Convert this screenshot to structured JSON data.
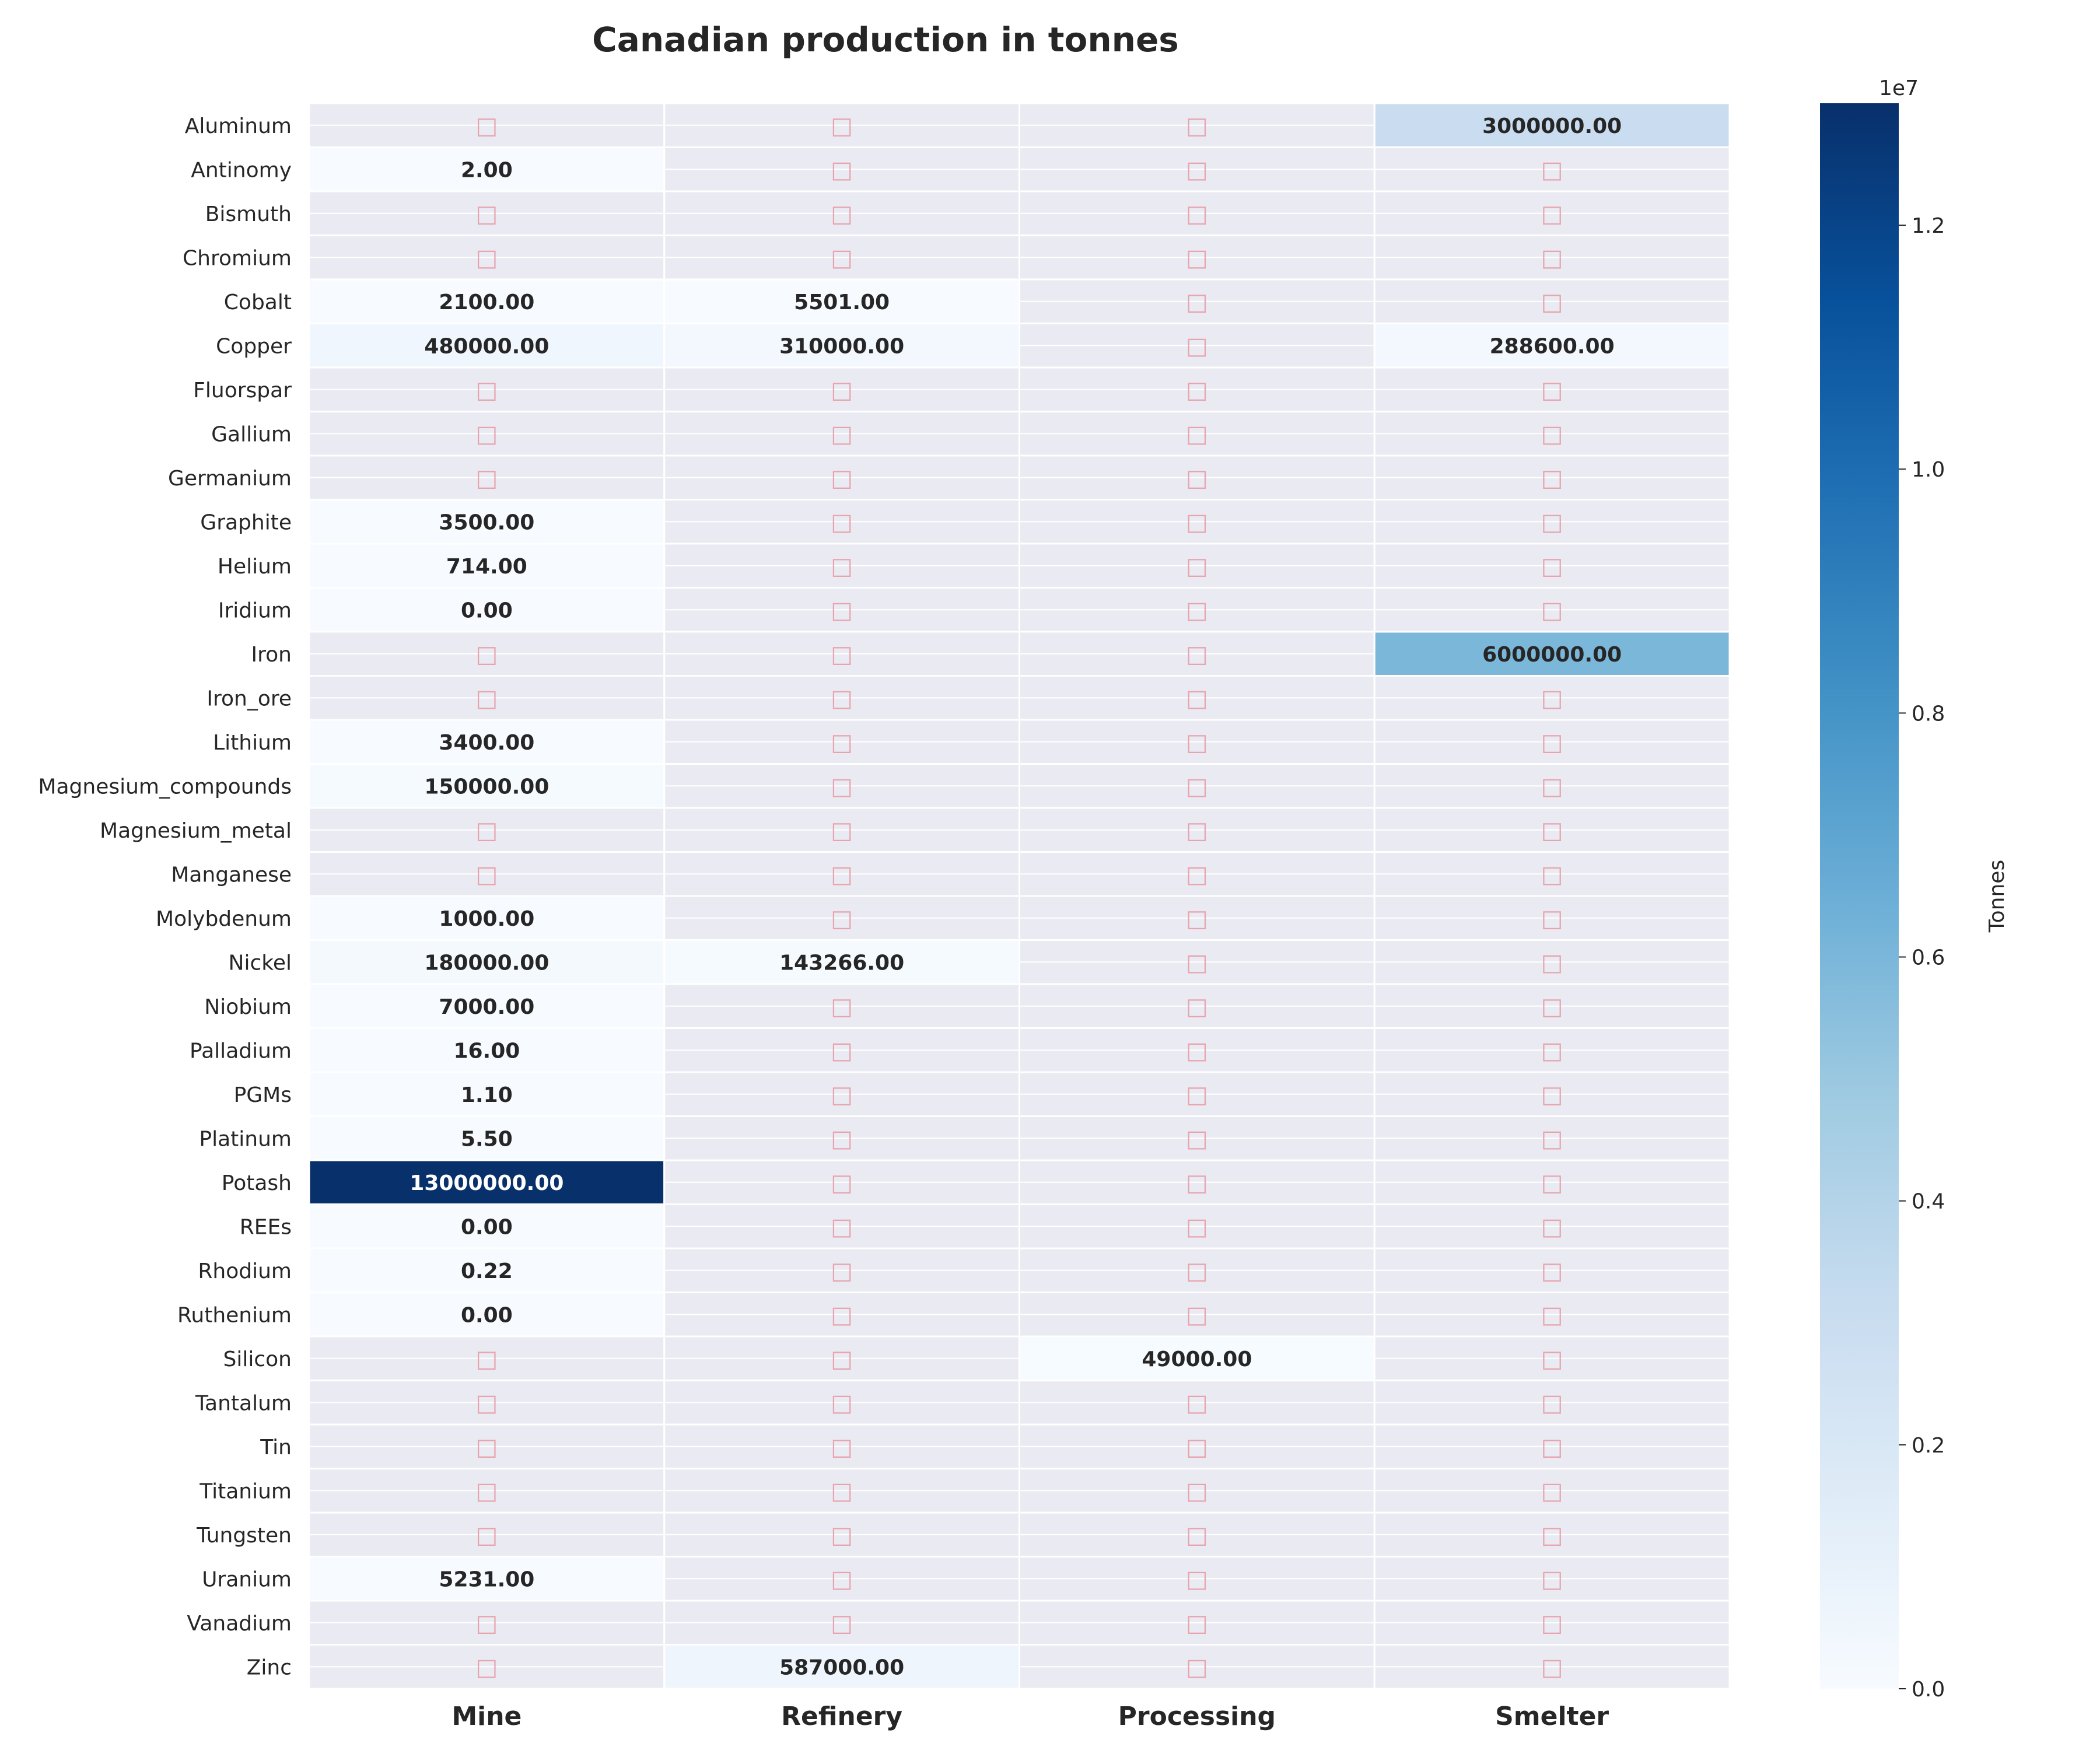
{
  "chart_data": {
    "type": "heatmap",
    "title": "Canadian production in tonnes",
    "xlabel": "",
    "ylabel": "",
    "columns": [
      "Mine",
      "Refinery",
      "Processing",
      "Smelter"
    ],
    "rows": [
      "Aluminum",
      "Antinomy",
      "Bismuth",
      "Chromium",
      "Cobalt",
      "Copper",
      "Fluorspar",
      "Gallium",
      "Germanium",
      "Graphite",
      "Helium",
      "Iridium",
      "Iron",
      "Iron_ore",
      "Lithium",
      "Magnesium_compounds",
      "Magnesium_metal",
      "Manganese",
      "Molybdenum",
      "Nickel",
      "Niobium",
      "Palladium",
      "PGMs",
      "Platinum",
      "Potash",
      "REEs",
      "Rhodium",
      "Ruthenium",
      "Silicon",
      "Tantalum",
      "Tin",
      "Titanium",
      "Tungsten",
      "Uranium",
      "Vanadium",
      "Zinc"
    ],
    "values": [
      [
        null,
        null,
        null,
        3000000
      ],
      [
        2,
        null,
        null,
        null
      ],
      [
        null,
        null,
        null,
        null
      ],
      [
        null,
        null,
        null,
        null
      ],
      [
        2100,
        5501,
        null,
        null
      ],
      [
        480000,
        310000,
        null,
        288600
      ],
      [
        null,
        null,
        null,
        null
      ],
      [
        null,
        null,
        null,
        null
      ],
      [
        null,
        null,
        null,
        null
      ],
      [
        3500,
        null,
        null,
        null
      ],
      [
        714,
        null,
        null,
        null
      ],
      [
        0,
        null,
        null,
        null
      ],
      [
        null,
        null,
        null,
        6000000
      ],
      [
        null,
        null,
        null,
        null
      ],
      [
        3400,
        null,
        null,
        null
      ],
      [
        150000,
        null,
        null,
        null
      ],
      [
        null,
        null,
        null,
        null
      ],
      [
        null,
        null,
        null,
        null
      ],
      [
        1000,
        null,
        null,
        null
      ],
      [
        180000,
        143266,
        null,
        null
      ],
      [
        7000,
        null,
        null,
        null
      ],
      [
        16,
        null,
        null,
        null
      ],
      [
        1.1,
        null,
        null,
        null
      ],
      [
        5.5,
        null,
        null,
        null
      ],
      [
        13000000,
        null,
        null,
        null
      ],
      [
        0,
        null,
        null,
        null
      ],
      [
        0.22,
        null,
        null,
        null
      ],
      [
        0,
        null,
        null,
        null
      ],
      [
        null,
        null,
        49000,
        null
      ],
      [
        null,
        null,
        null,
        null
      ],
      [
        null,
        null,
        null,
        null
      ],
      [
        null,
        null,
        null,
        null
      ],
      [
        null,
        null,
        null,
        null
      ],
      [
        5231,
        null,
        null,
        null
      ],
      [
        null,
        null,
        null,
        null
      ],
      [
        null,
        587000,
        null,
        null
      ]
    ],
    "value_labels": [
      [
        "",
        "",
        "",
        "3000000.00"
      ],
      [
        "2.00",
        "",
        "",
        ""
      ],
      [
        "",
        "",
        "",
        ""
      ],
      [
        "",
        "",
        "",
        ""
      ],
      [
        "2100.00",
        "5501.00",
        "",
        ""
      ],
      [
        "480000.00",
        "310000.00",
        "",
        "288600.00"
      ],
      [
        "",
        "",
        "",
        ""
      ],
      [
        "",
        "",
        "",
        ""
      ],
      [
        "",
        "",
        "",
        ""
      ],
      [
        "3500.00",
        "",
        "",
        ""
      ],
      [
        "714.00",
        "",
        "",
        ""
      ],
      [
        "0.00",
        "",
        "",
        ""
      ],
      [
        "",
        "",
        "",
        "6000000.00"
      ],
      [
        "",
        "",
        "",
        ""
      ],
      [
        "3400.00",
        "",
        "",
        ""
      ],
      [
        "150000.00",
        "",
        "",
        ""
      ],
      [
        "",
        "",
        "",
        ""
      ],
      [
        "",
        "",
        "",
        ""
      ],
      [
        "1000.00",
        "",
        "",
        ""
      ],
      [
        "180000.00",
        "143266.00",
        "",
        ""
      ],
      [
        "7000.00",
        "",
        "",
        ""
      ],
      [
        "16.00",
        "",
        "",
        ""
      ],
      [
        "1.10",
        "",
        "",
        ""
      ],
      [
        "5.50",
        "",
        "",
        ""
      ],
      [
        "13000000.00",
        "",
        "",
        ""
      ],
      [
        "0.00",
        "",
        "",
        ""
      ],
      [
        "0.22",
        "",
        "",
        ""
      ],
      [
        "0.00",
        "",
        "",
        ""
      ],
      [
        "",
        "",
        "49000.00",
        ""
      ],
      [
        "",
        "",
        "",
        ""
      ],
      [
        "",
        "",
        "",
        ""
      ],
      [
        "",
        "",
        "",
        ""
      ],
      [
        "",
        "",
        "",
        ""
      ],
      [
        "5231.00",
        "",
        "",
        ""
      ],
      [
        "",
        "",
        "",
        ""
      ],
      [
        "",
        "587000.00",
        "",
        ""
      ]
    ],
    "missing_glyph": "□",
    "colorbar": {
      "label": "Tonnes",
      "exponent_label": "1e7",
      "range": [
        0,
        13000000
      ],
      "ticks": [
        0,
        2000000,
        4000000,
        6000000,
        8000000,
        10000000,
        12000000
      ],
      "tick_labels": [
        "0.0",
        "0.2",
        "0.4",
        "0.6",
        "0.8",
        "1.0",
        "1.2"
      ],
      "colormap": "Blues",
      "stops": [
        "#f7fbff",
        "#deebf7",
        "#c6dbef",
        "#9ecae1",
        "#6baed6",
        "#4292c6",
        "#2171b5",
        "#08519c",
        "#08306b"
      ]
    },
    "colors": {
      "missing_cell": "#eaeaf2",
      "grid_line": "#ffffff",
      "missing_glyph": "#e8a3ae",
      "text_dark": "#262626",
      "text_light": "#ffffff"
    },
    "grid": true
  }
}
